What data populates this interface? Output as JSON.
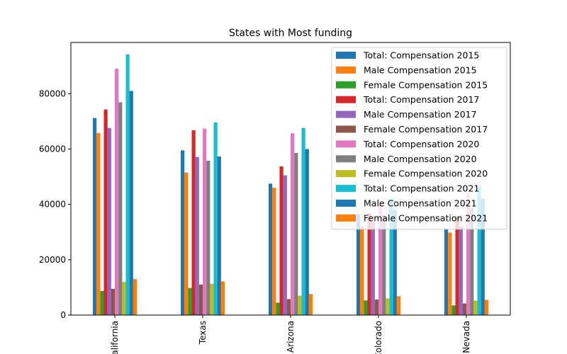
{
  "chart_data": {
    "type": "bar",
    "title": "States with Most funding",
    "xlabel": "",
    "ylabel": "",
    "categories": [
      "California",
      "Texas",
      "Arizona",
      "Colorado",
      "Nevada"
    ],
    "ylim": [
      0,
      98500
    ],
    "yticks": [
      0,
      20000,
      40000,
      60000,
      80000
    ],
    "legend_position": "top-right",
    "series": [
      {
        "name": "Total: Compensation 2015",
        "color": "#1f77b4",
        "values": [
          71200,
          59500,
          47500,
          36500,
          31000
        ]
      },
      {
        "name": "Male Compensation 2015",
        "color": "#ff7f0e",
        "values": [
          65800,
          51500,
          46000,
          32000,
          29800
        ]
      },
      {
        "name": "Female Compensation 2015",
        "color": "#2ca02c",
        "values": [
          8700,
          9800,
          4500,
          5300,
          3500
        ]
      },
      {
        "name": "Total: Compensation 2017",
        "color": "#d62728",
        "values": [
          74300,
          66800,
          53700,
          36800,
          35500
        ]
      },
      {
        "name": "Male Compensation 2017",
        "color": "#9467bd",
        "values": [
          67600,
          57100,
          50500,
          33500,
          32000
        ]
      },
      {
        "name": "Female Compensation 2017",
        "color": "#8c564b",
        "values": [
          9500,
          11000,
          5800,
          5600,
          4200
        ]
      },
      {
        "name": "Total: Compensation 2020",
        "color": "#e377c2",
        "values": [
          89000,
          67400,
          65700,
          40000,
          44000
        ]
      },
      {
        "name": "Male Compensation 2020",
        "color": "#7f7f7f",
        "values": [
          76900,
          55800,
          58600,
          36000,
          38500
        ]
      },
      {
        "name": "Female Compensation 2020",
        "color": "#bcbd22",
        "values": [
          12000,
          11300,
          7000,
          6000,
          5200
        ]
      },
      {
        "name": "Total: Compensation 2021",
        "color": "#17becf",
        "values": [
          94200,
          69600,
          67600,
          42000,
          46500
        ]
      },
      {
        "name": "Male Compensation 2021",
        "color": "#1f77b4",
        "values": [
          81000,
          57300,
          60000,
          38000,
          42000
        ]
      },
      {
        "name": "Female Compensation 2021",
        "color": "#ff7f0e",
        "values": [
          13000,
          12200,
          7600,
          6800,
          5500
        ]
      }
    ]
  }
}
